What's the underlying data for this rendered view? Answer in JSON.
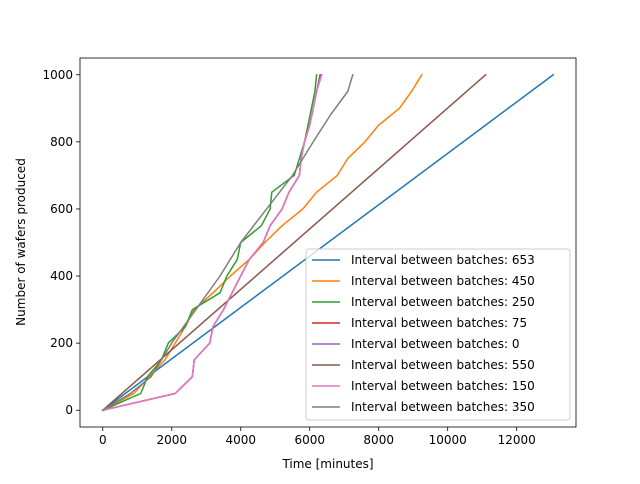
{
  "chart_data": {
    "type": "line",
    "title": "",
    "xlabel": "Time [minutes]",
    "ylabel": "Number of wafers produced",
    "xlim": [
      -660,
      13720
    ],
    "ylim": [
      -50,
      1050
    ],
    "xticks": [
      0,
      2000,
      4000,
      6000,
      8000,
      10000,
      12000
    ],
    "yticks": [
      0,
      200,
      400,
      600,
      800,
      1000
    ],
    "grid": false,
    "legend_position": "lower right",
    "series": [
      {
        "name": "Interval between batches: 653",
        "color": "#1f77b4",
        "points": [
          [
            0,
            0
          ],
          [
            13060,
            1000
          ]
        ]
      },
      {
        "name": "Interval between batches: 450",
        "color": "#ff7f0e",
        "points": [
          [
            0,
            0
          ],
          [
            900,
            50
          ],
          [
            1800,
            150
          ],
          [
            2100,
            200
          ],
          [
            2400,
            250
          ],
          [
            2650,
            300
          ],
          [
            3200,
            350
          ],
          [
            3700,
            400
          ],
          [
            4250,
            450
          ],
          [
            4700,
            500
          ],
          [
            5200,
            550
          ],
          [
            5800,
            600
          ],
          [
            6200,
            650
          ],
          [
            6800,
            700
          ],
          [
            7100,
            750
          ],
          [
            7600,
            800
          ],
          [
            8000,
            850
          ],
          [
            8600,
            900
          ],
          [
            8950,
            950
          ],
          [
            9250,
            1000
          ]
        ]
      },
      {
        "name": "Interval between batches: 250",
        "color": "#2ca02c",
        "points": [
          [
            0,
            0
          ],
          [
            1100,
            50
          ],
          [
            1300,
            100
          ],
          [
            1700,
            150
          ],
          [
            1900,
            200
          ],
          [
            2400,
            250
          ],
          [
            2600,
            300
          ],
          [
            3400,
            350
          ],
          [
            3600,
            400
          ],
          [
            3900,
            450
          ],
          [
            4000,
            500
          ],
          [
            4600,
            550
          ],
          [
            4850,
            600
          ],
          [
            4900,
            650
          ],
          [
            5550,
            700
          ],
          [
            5700,
            750
          ],
          [
            5850,
            800
          ],
          [
            5950,
            850
          ],
          [
            6050,
            900
          ],
          [
            6150,
            950
          ],
          [
            6200,
            1000
          ]
        ]
      },
      {
        "name": "Interval between batches: 75",
        "color": "#d62728",
        "points": [
          [
            0,
            0
          ],
          [
            2100,
            50
          ],
          [
            2300,
            70
          ],
          [
            2600,
            100
          ],
          [
            2650,
            150
          ],
          [
            3100,
            200
          ],
          [
            3200,
            250
          ],
          [
            3500,
            300
          ],
          [
            3750,
            350
          ],
          [
            4000,
            400
          ],
          [
            4250,
            450
          ],
          [
            4650,
            500
          ],
          [
            4850,
            550
          ],
          [
            5200,
            600
          ],
          [
            5400,
            650
          ],
          [
            5700,
            700
          ],
          [
            5750,
            750
          ],
          [
            5850,
            800
          ],
          [
            6000,
            850
          ],
          [
            6100,
            900
          ],
          [
            6200,
            950
          ],
          [
            6300,
            1000
          ]
        ]
      },
      {
        "name": "Interval between batches: 0",
        "color": "#9467bd",
        "points": [
          [
            0,
            0
          ],
          [
            2100,
            50
          ],
          [
            2300,
            70
          ],
          [
            2600,
            100
          ],
          [
            2650,
            150
          ],
          [
            3100,
            200
          ],
          [
            3200,
            250
          ],
          [
            3500,
            300
          ],
          [
            3750,
            350
          ],
          [
            4000,
            400
          ],
          [
            4250,
            450
          ],
          [
            4650,
            500
          ],
          [
            4850,
            550
          ],
          [
            5200,
            600
          ],
          [
            5400,
            650
          ],
          [
            5700,
            700
          ],
          [
            5750,
            750
          ],
          [
            5850,
            800
          ],
          [
            6000,
            850
          ],
          [
            6100,
            900
          ],
          [
            6200,
            950
          ],
          [
            6320,
            1000
          ]
        ]
      },
      {
        "name": "Interval between batches: 550",
        "color": "#8c564b",
        "points": [
          [
            0,
            0
          ],
          [
            11100,
            1000
          ]
        ]
      },
      {
        "name": "Interval between batches: 150",
        "color": "#e377c2",
        "points": [
          [
            0,
            0
          ],
          [
            2100,
            50
          ],
          [
            2300,
            70
          ],
          [
            2600,
            100
          ],
          [
            2650,
            150
          ],
          [
            3100,
            200
          ],
          [
            3200,
            250
          ],
          [
            3500,
            300
          ],
          [
            3750,
            350
          ],
          [
            4000,
            400
          ],
          [
            4250,
            450
          ],
          [
            4650,
            500
          ],
          [
            4850,
            550
          ],
          [
            5200,
            600
          ],
          [
            5400,
            650
          ],
          [
            5700,
            700
          ],
          [
            5750,
            750
          ],
          [
            5850,
            800
          ],
          [
            6000,
            850
          ],
          [
            6100,
            900
          ],
          [
            6200,
            950
          ],
          [
            6350,
            1000
          ]
        ]
      },
      {
        "name": "Interval between batches: 350",
        "color": "#7f7f7f",
        "points": [
          [
            0,
            0
          ],
          [
            800,
            50
          ],
          [
            1400,
            100
          ],
          [
            2000,
            200
          ],
          [
            2700,
            300
          ],
          [
            3400,
            400
          ],
          [
            4000,
            500
          ],
          [
            4600,
            580
          ],
          [
            5500,
            700
          ],
          [
            6100,
            800
          ],
          [
            6600,
            880
          ],
          [
            7100,
            950
          ],
          [
            7250,
            1000
          ]
        ]
      }
    ]
  }
}
